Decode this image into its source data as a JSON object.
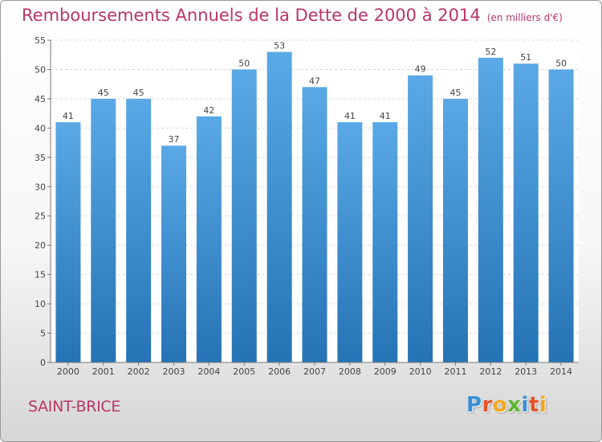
{
  "chart_data": {
    "type": "bar",
    "title": "Remboursements Annuels de la Dette de 2000 à 2014",
    "subtitle": "(en milliers d'€)",
    "categories": [
      "2000",
      "2001",
      "2002",
      "2003",
      "2004",
      "2005",
      "2006",
      "2007",
      "2008",
      "2009",
      "2010",
      "2011",
      "2012",
      "2013",
      "2014"
    ],
    "values": [
      41,
      45,
      45,
      37,
      42,
      50,
      53,
      47,
      41,
      41,
      49,
      45,
      52,
      51,
      50
    ],
    "yticks": [
      0,
      5,
      10,
      15,
      20,
      25,
      30,
      35,
      40,
      45,
      50,
      55
    ],
    "ylim": [
      0,
      55
    ],
    "grid": true,
    "bar_color_top": "#5aa9e6",
    "bar_color_bottom": "#2573b4"
  },
  "footer": {
    "commune": "SAINT-BRICE",
    "logo": [
      "P",
      "r",
      "o",
      "x",
      "i",
      "t",
      "i"
    ],
    "logo_colors": [
      "#3a8fd6",
      "#e8522a",
      "#f2a81d",
      "#5cb531",
      "#3a8fd6",
      "#e8522a",
      "#f2a81d"
    ]
  }
}
